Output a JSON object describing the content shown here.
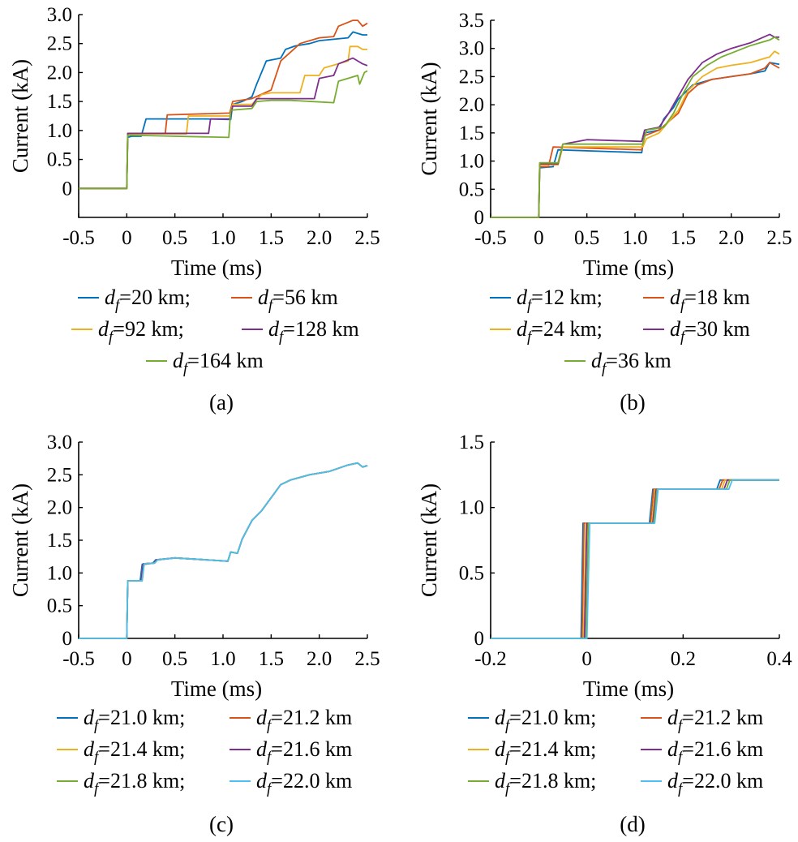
{
  "colors": {
    "blue": "#0072BD",
    "orange": "#D95319",
    "yellow": "#EDB120",
    "purple": "#7E2F8E",
    "green": "#77AC30",
    "cyan": "#4DBEEE"
  },
  "legend_template": {
    "symbol_d": "d",
    "symbol_sub": "f",
    "separator": ";"
  },
  "chart_data": [
    {
      "type": "line",
      "caption": "(a)",
      "xlabel": "Time (ms)",
      "ylabel": "Current (kA)",
      "xlim": [
        -0.5,
        2.5
      ],
      "ylim": [
        -0.5,
        3.0
      ],
      "xticks": [
        "-0.5",
        "0",
        "0.5",
        "1.0",
        "1.5",
        "2.0",
        "2.5"
      ],
      "yticks": [
        "0",
        "0.5",
        "1.0",
        "1.5",
        "2.0",
        "2.5",
        "3.0"
      ],
      "grid": false,
      "legend_position": "below",
      "legend_rows": [
        [
          0,
          1
        ],
        [
          2,
          3
        ],
        [
          4
        ]
      ],
      "series": [
        {
          "name": "=20 km",
          "color": "blue",
          "x": [
            -0.5,
            0,
            0.01,
            0.05,
            0.15,
            0.2,
            0.35,
            0.8,
            1.08,
            1.1,
            1.2,
            1.3,
            1.35,
            1.45,
            1.6,
            1.65,
            1.75,
            1.9,
            2.0,
            2.3,
            2.35,
            2.45,
            2.5
          ],
          "y": [
            0,
            0,
            0.88,
            0.9,
            0.9,
            1.2,
            1.2,
            1.2,
            1.19,
            1.45,
            1.5,
            1.58,
            1.8,
            2.2,
            2.25,
            2.4,
            2.46,
            2.5,
            2.55,
            2.6,
            2.7,
            2.65,
            2.65
          ]
        },
        {
          "name": "=56 km",
          "color": "orange",
          "x": [
            -0.5,
            0,
            0.01,
            0.4,
            0.42,
            1.07,
            1.1,
            1.3,
            1.5,
            1.6,
            1.7,
            1.8,
            2.0,
            2.15,
            2.2,
            2.35,
            2.4,
            2.45,
            2.5
          ],
          "y": [
            0,
            0,
            0.95,
            0.95,
            1.27,
            1.3,
            1.5,
            1.55,
            1.7,
            2.2,
            2.35,
            2.5,
            2.6,
            2.62,
            2.8,
            2.9,
            2.9,
            2.8,
            2.85
          ]
        },
        {
          "name": "=92 km",
          "color": "yellow",
          "x": [
            -0.5,
            0,
            0.01,
            0.62,
            0.64,
            1.07,
            1.1,
            1.3,
            1.4,
            1.5,
            1.55,
            1.8,
            1.85,
            2.0,
            2.05,
            2.3,
            2.32,
            2.4,
            2.45,
            2.5
          ],
          "y": [
            0,
            0,
            0.94,
            0.94,
            1.25,
            1.25,
            1.45,
            1.45,
            1.62,
            1.65,
            1.65,
            1.65,
            1.95,
            1.95,
            2.08,
            2.2,
            2.45,
            2.45,
            2.4,
            2.4
          ]
        },
        {
          "name": "=128 km",
          "color": "purple",
          "x": [
            -0.5,
            0,
            0.01,
            0.85,
            0.87,
            1.07,
            1.1,
            1.3,
            1.35,
            1.55,
            1.62,
            1.95,
            2.0,
            2.15,
            2.2,
            2.35,
            2.4,
            2.45,
            2.5
          ],
          "y": [
            0,
            0,
            0.95,
            0.95,
            1.2,
            1.2,
            1.42,
            1.42,
            1.55,
            1.55,
            1.55,
            1.55,
            1.9,
            1.95,
            2.15,
            2.25,
            2.2,
            2.15,
            2.12
          ]
        },
        {
          "name": "=164 km",
          "color": "green",
          "x": [
            -0.5,
            0,
            0.01,
            1.06,
            1.08,
            1.3,
            1.35,
            1.5,
            1.7,
            2.15,
            2.2,
            2.4,
            2.42,
            2.47,
            2.5
          ],
          "y": [
            0,
            0,
            0.92,
            0.88,
            1.35,
            1.38,
            1.5,
            1.52,
            1.52,
            1.48,
            1.85,
            1.95,
            1.8,
            2.0,
            2.03
          ]
        }
      ]
    },
    {
      "type": "line",
      "caption": "(b)",
      "xlabel": "Time (ms)",
      "ylabel": "Current (kA)",
      "xlim": [
        -0.5,
        2.5
      ],
      "ylim": [
        0,
        3.5
      ],
      "xticks": [
        "-0.5",
        "0",
        "0.5",
        "1.0",
        "1.5",
        "2.0",
        "2.5"
      ],
      "yticks": [
        "0",
        "0.5",
        "1.0",
        "1.5",
        "2.0",
        "2.5",
        "3.0",
        "3.5"
      ],
      "grid": false,
      "legend_position": "below",
      "legend_rows": [
        [
          0,
          1
        ],
        [
          2,
          3
        ],
        [
          4
        ]
      ],
      "series": [
        {
          "name": "=12 km",
          "color": "blue",
          "x": [
            -0.5,
            0,
            0.01,
            0.15,
            0.2,
            1.07,
            1.1,
            1.25,
            1.3,
            1.4,
            1.45,
            1.6,
            1.8,
            2.0,
            2.2,
            2.35,
            2.4,
            2.5
          ],
          "y": [
            0,
            0,
            0.88,
            0.9,
            1.2,
            1.15,
            1.5,
            1.55,
            1.75,
            1.95,
            2.1,
            2.35,
            2.45,
            2.5,
            2.55,
            2.6,
            2.75,
            2.72
          ]
        },
        {
          "name": "=18 km",
          "color": "orange",
          "x": [
            -0.5,
            0,
            0.01,
            0.1,
            0.15,
            1.07,
            1.1,
            1.25,
            1.35,
            1.45,
            1.55,
            1.65,
            1.8,
            2.0,
            2.2,
            2.35,
            2.4,
            2.5
          ],
          "y": [
            0,
            0,
            0.9,
            0.9,
            1.25,
            1.2,
            1.45,
            1.55,
            1.7,
            1.85,
            2.2,
            2.35,
            2.45,
            2.5,
            2.55,
            2.65,
            2.75,
            2.65
          ]
        },
        {
          "name": "=24 km",
          "color": "yellow",
          "x": [
            -0.5,
            0,
            0.01,
            0.2,
            0.25,
            1.08,
            1.12,
            1.25,
            1.35,
            1.45,
            1.55,
            1.7,
            1.85,
            2.0,
            2.2,
            2.4,
            2.45,
            2.5
          ],
          "y": [
            0,
            0,
            0.93,
            0.93,
            1.25,
            1.25,
            1.4,
            1.5,
            1.7,
            1.9,
            2.25,
            2.5,
            2.65,
            2.7,
            2.75,
            2.85,
            2.95,
            2.9
          ]
        },
        {
          "name": "=30 km",
          "color": "purple",
          "x": [
            -0.5,
            0,
            0.01,
            0.2,
            0.25,
            0.5,
            1.07,
            1.1,
            1.25,
            1.35,
            1.45,
            1.55,
            1.7,
            1.85,
            2.0,
            2.2,
            2.4,
            2.45,
            2.5
          ],
          "y": [
            0,
            0,
            0.95,
            0.95,
            1.3,
            1.38,
            1.35,
            1.55,
            1.6,
            1.85,
            2.15,
            2.45,
            2.75,
            2.9,
            3.0,
            3.1,
            3.25,
            3.2,
            3.2
          ]
        },
        {
          "name": "=36 km",
          "color": "green",
          "x": [
            -0.5,
            0,
            0.01,
            0.2,
            0.25,
            1.08,
            1.12,
            1.3,
            1.4,
            1.5,
            1.6,
            1.75,
            1.9,
            2.05,
            2.2,
            2.4,
            2.45,
            2.5
          ],
          "y": [
            0,
            0,
            0.97,
            0.97,
            1.3,
            1.3,
            1.55,
            1.6,
            1.85,
            2.2,
            2.5,
            2.7,
            2.85,
            2.95,
            3.05,
            3.15,
            3.2,
            3.15
          ]
        }
      ]
    },
    {
      "type": "line",
      "caption": "(c)",
      "xlabel": "Time (ms)",
      "ylabel": "Current (kA)",
      "xlim": [
        -0.5,
        2.5
      ],
      "ylim": [
        0,
        3.0
      ],
      "xticks": [
        "-0.5",
        "0",
        "0.5",
        "1.0",
        "1.5",
        "2.0",
        "2.5"
      ],
      "yticks": [
        "0",
        "0.5",
        "1.0",
        "1.5",
        "2.0",
        "2.5",
        "3.0"
      ],
      "grid": false,
      "legend_position": "below",
      "legend_rows": [
        [
          0,
          1
        ],
        [
          2,
          3
        ],
        [
          4,
          5
        ]
      ],
      "series": [
        {
          "name": "=21.0 km",
          "color": "blue",
          "x": [
            -0.5,
            0,
            0.01,
            0.14,
            0.16,
            0.27,
            0.3,
            0.5,
            1.05,
            1.08,
            1.15,
            1.2,
            1.3,
            1.4,
            1.5,
            1.6,
            1.7,
            1.9,
            2.1,
            2.3,
            2.4,
            2.45,
            2.5
          ],
          "y": [
            0,
            0,
            0.88,
            0.88,
            1.13,
            1.15,
            1.2,
            1.23,
            1.18,
            1.32,
            1.3,
            1.52,
            1.8,
            1.95,
            2.15,
            2.35,
            2.42,
            2.5,
            2.55,
            2.65,
            2.68,
            2.62,
            2.64
          ]
        },
        {
          "name": "=21.2 km",
          "color": "orange",
          "x": [
            -0.5,
            0,
            0.01,
            0.15,
            0.17,
            0.28,
            0.31,
            0.5,
            1.05,
            1.08,
            1.15,
            1.2,
            1.3,
            1.4,
            1.5,
            1.6,
            1.7,
            1.9,
            2.1,
            2.3,
            2.4,
            2.45,
            2.5
          ],
          "y": [
            0,
            0,
            0.88,
            0.88,
            1.13,
            1.15,
            1.2,
            1.23,
            1.18,
            1.32,
            1.3,
            1.52,
            1.8,
            1.95,
            2.15,
            2.35,
            2.42,
            2.5,
            2.55,
            2.65,
            2.68,
            2.62,
            2.64
          ]
        },
        {
          "name": "=21.4 km",
          "color": "yellow",
          "x": [
            -0.5,
            0,
            0.01,
            0.15,
            0.17,
            0.28,
            0.31,
            0.5,
            1.05,
            1.08,
            1.15,
            1.2,
            1.3,
            1.4,
            1.5,
            1.6,
            1.7,
            1.9,
            2.1,
            2.3,
            2.4,
            2.45,
            2.5
          ],
          "y": [
            0,
            0,
            0.88,
            0.88,
            1.14,
            1.15,
            1.2,
            1.23,
            1.18,
            1.32,
            1.3,
            1.52,
            1.8,
            1.95,
            2.15,
            2.35,
            2.42,
            2.5,
            2.55,
            2.65,
            2.68,
            2.62,
            2.64
          ]
        },
        {
          "name": "=21.6 km",
          "color": "purple",
          "x": [
            -0.5,
            0,
            0.01,
            0.15,
            0.17,
            0.28,
            0.31,
            0.5,
            1.05,
            1.08,
            1.15,
            1.2,
            1.3,
            1.4,
            1.5,
            1.6,
            1.7,
            1.9,
            2.1,
            2.3,
            2.4,
            2.45,
            2.5
          ],
          "y": [
            0,
            0,
            0.88,
            0.88,
            1.14,
            1.15,
            1.2,
            1.23,
            1.18,
            1.32,
            1.3,
            1.52,
            1.8,
            1.95,
            2.15,
            2.35,
            2.42,
            2.5,
            2.55,
            2.65,
            2.68,
            2.62,
            2.64
          ]
        },
        {
          "name": "=21.8 km",
          "color": "green",
          "x": [
            -0.5,
            0,
            0.01,
            0.16,
            0.18,
            0.29,
            0.32,
            0.5,
            1.05,
            1.08,
            1.15,
            1.2,
            1.3,
            1.4,
            1.5,
            1.6,
            1.7,
            1.9,
            2.1,
            2.3,
            2.4,
            2.45,
            2.5
          ],
          "y": [
            0,
            0,
            0.88,
            0.88,
            1.14,
            1.15,
            1.2,
            1.23,
            1.18,
            1.32,
            1.3,
            1.52,
            1.8,
            1.95,
            2.15,
            2.35,
            2.42,
            2.5,
            2.55,
            2.65,
            2.68,
            2.62,
            2.64
          ]
        },
        {
          "name": "=22.0 km",
          "color": "cyan",
          "x": [
            -0.5,
            0,
            0.01,
            0.16,
            0.18,
            0.29,
            0.32,
            0.5,
            1.05,
            1.08,
            1.15,
            1.2,
            1.3,
            1.4,
            1.5,
            1.6,
            1.7,
            1.9,
            2.1,
            2.3,
            2.4,
            2.45,
            2.5
          ],
          "y": [
            0,
            0,
            0.88,
            0.88,
            1.14,
            1.15,
            1.2,
            1.23,
            1.18,
            1.32,
            1.3,
            1.52,
            1.8,
            1.95,
            2.15,
            2.35,
            2.42,
            2.5,
            2.55,
            2.65,
            2.68,
            2.62,
            2.64
          ]
        }
      ]
    },
    {
      "type": "line",
      "caption": "(d)",
      "xlabel": "Time (ms)",
      "ylabel": "Current (kA)",
      "xlim": [
        -0.2,
        0.4
      ],
      "ylim": [
        0,
        1.5
      ],
      "xticks": [
        "-0.2",
        "0",
        "0.2",
        "0.4"
      ],
      "yticks": [
        "0",
        "0.5",
        "1.0",
        "1.5"
      ],
      "grid": false,
      "legend_position": "below",
      "legend_rows": [
        [
          0,
          1
        ],
        [
          2,
          3
        ],
        [
          4,
          5
        ]
      ],
      "series": [
        {
          "name": "=21.0 km",
          "color": "blue",
          "x": [
            -0.2,
            -0.012,
            -0.008,
            0.13,
            0.137,
            0.27,
            0.277,
            0.4
          ],
          "y": [
            0,
            0,
            0.88,
            0.88,
            1.14,
            1.14,
            1.21,
            1.21
          ]
        },
        {
          "name": "=21.2 km",
          "color": "orange",
          "x": [
            -0.2,
            -0.01,
            -0.006,
            0.132,
            0.139,
            0.275,
            0.282,
            0.4
          ],
          "y": [
            0,
            0,
            0.88,
            0.88,
            1.14,
            1.14,
            1.21,
            1.21
          ]
        },
        {
          "name": "=21.4 km",
          "color": "yellow",
          "x": [
            -0.2,
            -0.007,
            -0.002,
            0.135,
            0.142,
            0.28,
            0.287,
            0.4
          ],
          "y": [
            0,
            0,
            0.88,
            0.88,
            1.14,
            1.14,
            1.21,
            1.21
          ]
        },
        {
          "name": "=21.6 km",
          "color": "purple",
          "x": [
            -0.2,
            -0.005,
            0.0,
            0.137,
            0.144,
            0.285,
            0.292,
            0.4
          ],
          "y": [
            0,
            0,
            0.88,
            0.88,
            1.14,
            1.14,
            1.21,
            1.21
          ]
        },
        {
          "name": "=21.8 km",
          "color": "green",
          "x": [
            -0.2,
            -0.002,
            0.003,
            0.139,
            0.146,
            0.29,
            0.297,
            0.4
          ],
          "y": [
            0,
            0,
            0.88,
            0.88,
            1.14,
            1.14,
            1.21,
            1.21
          ]
        },
        {
          "name": "=22.0 km",
          "color": "cyan",
          "x": [
            -0.2,
            0.0,
            0.006,
            0.141,
            0.148,
            0.295,
            0.302,
            0.4
          ],
          "y": [
            0,
            0,
            0.88,
            0.88,
            1.14,
            1.14,
            1.21,
            1.21
          ]
        }
      ]
    }
  ]
}
